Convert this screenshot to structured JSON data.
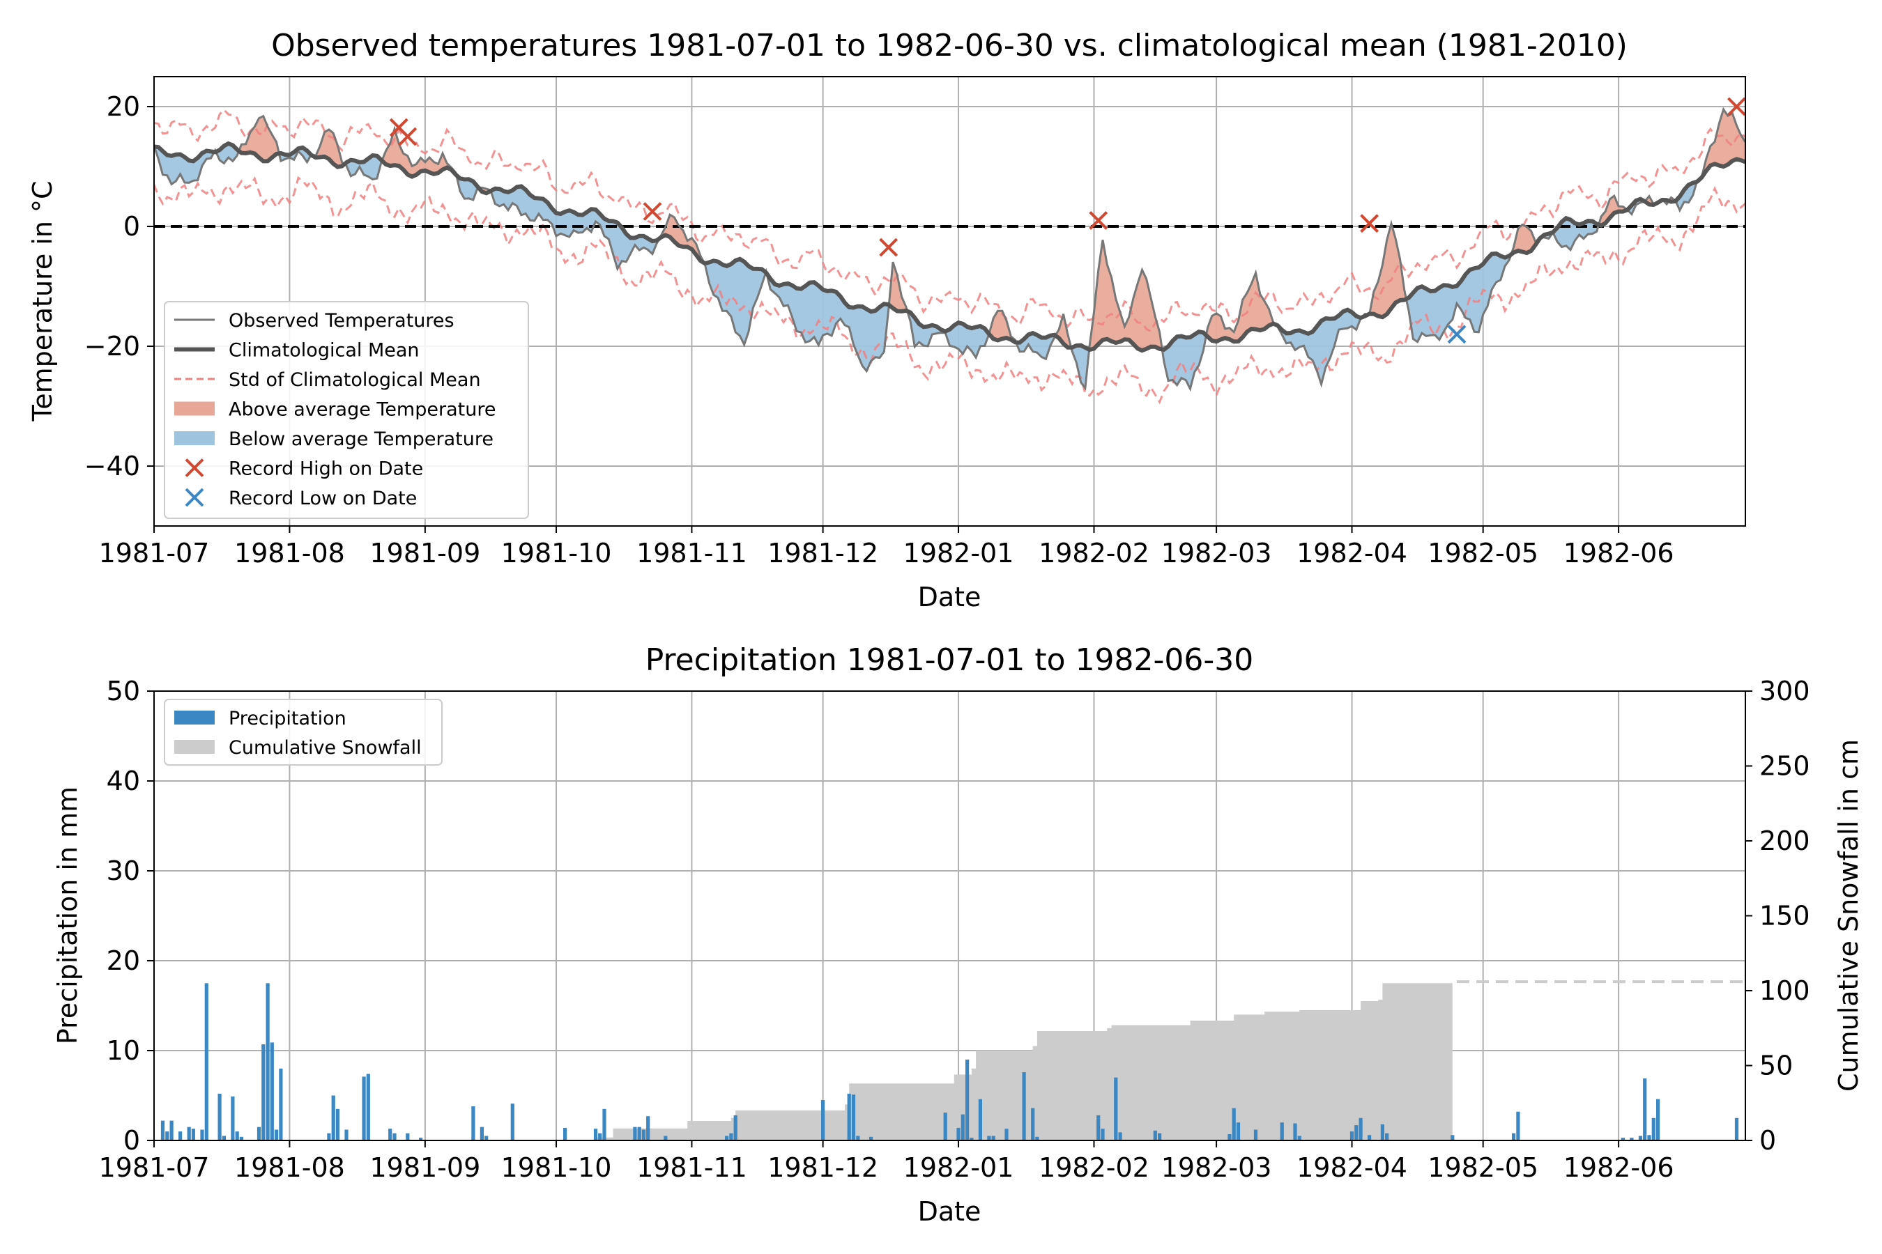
{
  "chart_data": [
    {
      "type": "line",
      "title": "Observed temperatures 1981-07-01 to 1982-06-30 vs. climatological mean (1981-2010)",
      "xlabel": "Date",
      "ylabel": "Temperature in °C",
      "xlim": [
        "1981-07-01",
        "1982-06-30"
      ],
      "ylim": [
        -50,
        25
      ],
      "grid": true,
      "legend_position": "lower-left",
      "x_ticks": [
        "1981-07",
        "1981-08",
        "1981-09",
        "1981-10",
        "1981-11",
        "1981-12",
        "1982-01",
        "1982-02",
        "1982-03",
        "1982-04",
        "1982-05",
        "1982-06"
      ],
      "y_ticks": [
        "20",
        "0",
        "−20",
        "−40"
      ],
      "legend": [
        {
          "label": "Observed Temperatures",
          "style": "observed"
        },
        {
          "label": "Climatological Mean",
          "style": "mean"
        },
        {
          "label": "Std of Climatological Mean",
          "style": "std"
        },
        {
          "label": "Above average Temperature",
          "style": "above"
        },
        {
          "label": "Below average Temperature",
          "style": "below"
        },
        {
          "label": "Record High on Date",
          "style": "record-high"
        },
        {
          "label": "Record Low on Date",
          "style": "record-low"
        }
      ],
      "colors": {
        "above": "#e8a796",
        "below": "#9dc3df",
        "observed": "#777777",
        "mean": "#555555",
        "std": "#f08080",
        "record_high": "#d1472f",
        "record_low": "#3a87c4",
        "zero_line": "#000000"
      },
      "climatological_mean": {
        "x": [
          "1981-07-01",
          "1981-07-20",
          "1981-08-10",
          "1981-08-31",
          "1981-09-20",
          "1981-10-10",
          "1981-10-31",
          "1981-11-20",
          "1981-12-10",
          "1981-12-31",
          "1982-01-20",
          "1982-02-10",
          "1982-02-28",
          "1982-03-20",
          "1982-04-10",
          "1982-04-30",
          "1982-05-20",
          "1982-06-10",
          "1982-06-30"
        ],
        "y": [
          12,
          12.5,
          11.5,
          9.5,
          6,
          1.5,
          -4,
          -8.5,
          -13,
          -17,
          -19,
          -20,
          -18.5,
          -17,
          -13.5,
          -7,
          0,
          4,
          12
        ]
      },
      "std_band": {
        "upper_offset": 4.5,
        "lower_offset": 6.5
      },
      "observed": {
        "x": [
          "1981-07-01",
          "1981-07-05",
          "1981-07-10",
          "1981-07-15",
          "1981-07-20",
          "1981-07-25",
          "1981-07-30",
          "1981-08-05",
          "1981-08-10",
          "1981-08-15",
          "1981-08-20",
          "1981-08-25",
          "1981-08-30",
          "1981-09-05",
          "1981-09-10",
          "1981-09-15",
          "1981-09-20",
          "1981-09-25",
          "1981-09-30",
          "1981-10-05",
          "1981-10-10",
          "1981-10-15",
          "1981-10-20",
          "1981-10-24",
          "1981-10-28",
          "1981-11-03",
          "1981-11-08",
          "1981-11-13",
          "1981-11-18",
          "1981-11-25",
          "1981-11-30",
          "1981-12-05",
          "1981-12-10",
          "1981-12-15",
          "1981-12-17",
          "1981-12-22",
          "1981-12-27",
          "1982-01-01",
          "1982-01-05",
          "1982-01-10",
          "1982-01-15",
          "1982-01-20",
          "1982-01-25",
          "1982-01-30",
          "1982-02-03",
          "1982-02-08",
          "1982-02-12",
          "1982-02-18",
          "1982-02-23",
          "1982-02-28",
          "1982-03-05",
          "1982-03-10",
          "1982-03-15",
          "1982-03-20",
          "1982-03-25",
          "1982-03-30",
          "1982-04-05",
          "1982-04-10",
          "1982-04-15",
          "1982-04-20",
          "1982-04-25",
          "1982-04-30",
          "1982-05-05",
          "1982-05-10",
          "1982-05-15",
          "1982-05-20",
          "1982-05-25",
          "1982-05-30",
          "1982-06-05",
          "1982-06-10",
          "1982-06-15",
          "1982-06-20",
          "1982-06-25",
          "1982-06-30"
        ],
        "y": [
          13,
          7,
          8,
          12,
          11,
          19,
          12,
          11,
          16,
          9,
          8,
          15,
          10,
          12,
          5,
          6,
          3,
          2,
          0,
          -2,
          1,
          -6,
          -4,
          -3,
          2,
          -5,
          -14,
          -19,
          -8,
          -17,
          -20,
          -15,
          -23,
          -22,
          -5,
          -20,
          -18,
          -20,
          -22,
          -14,
          -20,
          -22,
          -16,
          -27,
          -2,
          -18,
          -6,
          -25,
          -27,
          -15,
          -17,
          -8,
          -18,
          -20,
          -25,
          -17,
          -15,
          1,
          -18,
          -19,
          -14,
          -17,
          -8,
          0,
          -2,
          -3,
          -2,
          4,
          3,
          5,
          3,
          8,
          20,
          14
        ]
      },
      "record_highs": {
        "x": [
          "1981-08-26",
          "1981-08-28",
          "1981-10-23",
          "1981-12-16",
          "1982-02-02",
          "1982-04-05",
          "1982-06-28"
        ],
        "y": [
          16.5,
          15,
          2.5,
          -3.5,
          1,
          0.5,
          20
        ]
      },
      "record_lows": {
        "x": [
          "1982-04-25"
        ],
        "y": [
          -18
        ]
      }
    },
    {
      "type": "bar",
      "title": "Precipitation 1981-07-01 to 1982-06-30",
      "xlabel": "Date",
      "ylabel": "Precipitation in mm",
      "y2label": "Cumulative Snowfall in cm",
      "xlim": [
        "1981-07-01",
        "1982-06-30"
      ],
      "ylim": [
        0,
        50
      ],
      "y2lim": [
        0,
        300
      ],
      "grid": true,
      "legend_position": "top-left",
      "x_ticks": [
        "1981-07",
        "1981-08",
        "1981-09",
        "1981-10",
        "1981-11",
        "1981-12",
        "1982-01",
        "1982-02",
        "1982-03",
        "1982-04",
        "1982-05",
        "1982-06"
      ],
      "y_ticks": [
        "0",
        "10",
        "20",
        "30",
        "40",
        "50"
      ],
      "y2_ticks": [
        "0",
        "50",
        "100",
        "150",
        "200",
        "250",
        "300"
      ],
      "legend": [
        {
          "label": "Precipitation",
          "style": "bar"
        },
        {
          "label": "Cumulative Snowfall",
          "style": "area"
        }
      ],
      "colors": {
        "precipitation": "#3a87c4",
        "snowfall": "#cccccc",
        "projection": "#cccccc"
      },
      "precipitation": {
        "x": [
          "1981-07-03",
          "1981-07-04",
          "1981-07-05",
          "1981-07-07",
          "1981-07-09",
          "1981-07-10",
          "1981-07-12",
          "1981-07-13",
          "1981-07-16",
          "1981-07-17",
          "1981-07-19",
          "1981-07-20",
          "1981-07-21",
          "1981-07-25",
          "1981-07-26",
          "1981-07-27",
          "1981-07-28",
          "1981-07-29",
          "1981-07-30",
          "1981-08-10",
          "1981-08-11",
          "1981-08-12",
          "1981-08-14",
          "1981-08-18",
          "1981-08-19",
          "1981-08-24",
          "1981-08-25",
          "1981-08-28",
          "1981-08-31",
          "1981-09-12",
          "1981-09-14",
          "1981-09-15",
          "1981-09-21",
          "1981-10-03",
          "1981-10-10",
          "1981-10-11",
          "1981-10-12",
          "1981-10-19",
          "1981-10-20",
          "1981-10-21",
          "1981-10-22",
          "1981-10-26",
          "1981-11-09",
          "1981-11-10",
          "1981-11-11",
          "1981-12-01",
          "1981-12-07",
          "1981-12-08",
          "1981-12-09",
          "1981-12-12",
          "1981-12-29",
          "1982-01-01",
          "1982-01-02",
          "1982-01-03",
          "1982-01-04",
          "1982-01-06",
          "1982-01-08",
          "1982-01-09",
          "1982-01-12",
          "1982-01-16",
          "1982-01-18",
          "1982-01-19",
          "1982-02-02",
          "1982-02-03",
          "1982-02-06",
          "1982-02-07",
          "1982-02-15",
          "1982-02-16",
          "1982-03-04",
          "1982-03-05",
          "1982-03-06",
          "1982-03-10",
          "1982-03-16",
          "1982-03-19",
          "1982-03-20",
          "1982-04-01",
          "1982-04-02",
          "1982-04-03",
          "1982-04-05",
          "1982-04-08",
          "1982-04-09",
          "1982-04-24",
          "1982-05-08",
          "1982-05-09",
          "1982-06-02",
          "1982-06-04",
          "1982-06-06",
          "1982-06-07",
          "1982-06-08",
          "1982-06-09",
          "1982-06-10",
          "1982-06-28"
        ],
        "y": [
          2.2,
          1.0,
          2.2,
          1.0,
          1.5,
          1.3,
          1.2,
          17.5,
          5.2,
          0.5,
          4.9,
          1.0,
          0.4,
          1.5,
          10.7,
          17.5,
          10.9,
          1.2,
          8.0,
          0.8,
          5.0,
          3.5,
          1.2,
          7.1,
          7.4,
          1.3,
          0.8,
          0.8,
          0.3,
          3.8,
          1.5,
          0.5,
          4.1,
          1.4,
          1.3,
          0.8,
          3.5,
          1.5,
          1.5,
          1.2,
          2.7,
          0.5,
          0.5,
          0.8,
          2.8,
          4.5,
          5.2,
          5.1,
          0.5,
          0.4,
          3.1,
          1.4,
          2.9,
          9.0,
          0.3,
          4.6,
          0.5,
          0.5,
          1.3,
          7.6,
          3.6,
          0.4,
          2.8,
          1.3,
          7.0,
          0.9,
          1.1,
          0.8,
          0.7,
          3.6,
          2.0,
          1.2,
          2.0,
          1.9,
          0.5,
          1.0,
          1.7,
          2.5,
          0.6,
          1.8,
          0.8,
          0.6,
          0.8,
          3.2,
          0.3,
          0.3,
          0.5,
          6.9,
          0.6,
          2.5,
          4.6,
          2.5
        ]
      },
      "cumulative_snowfall": {
        "x": [
          "1981-10-01",
          "1981-10-10",
          "1981-10-14",
          "1981-10-31",
          "1981-11-10",
          "1981-11-11",
          "1981-11-30",
          "1981-12-06",
          "1981-12-07",
          "1981-12-28",
          "1981-12-31",
          "1982-01-04",
          "1982-01-05",
          "1982-01-18",
          "1982-01-19",
          "1982-01-31",
          "1982-02-04",
          "1982-02-05",
          "1982-02-20",
          "1982-02-23",
          "1982-03-02",
          "1982-03-05",
          "1982-03-12",
          "1982-03-20",
          "1982-04-01",
          "1982-04-03",
          "1982-04-07",
          "1982-04-08",
          "1982-04-24"
        ],
        "y": [
          0,
          2,
          8,
          13,
          15,
          20,
          20,
          24,
          38,
          38,
          44,
          48,
          60,
          63,
          73,
          73,
          75,
          77,
          77,
          80,
          80,
          84,
          86,
          87,
          87,
          93,
          94,
          105,
          106
        ]
      },
      "projection": {
        "from": "1982-04-25",
        "to": "1982-06-30",
        "value": 106
      }
    }
  ]
}
